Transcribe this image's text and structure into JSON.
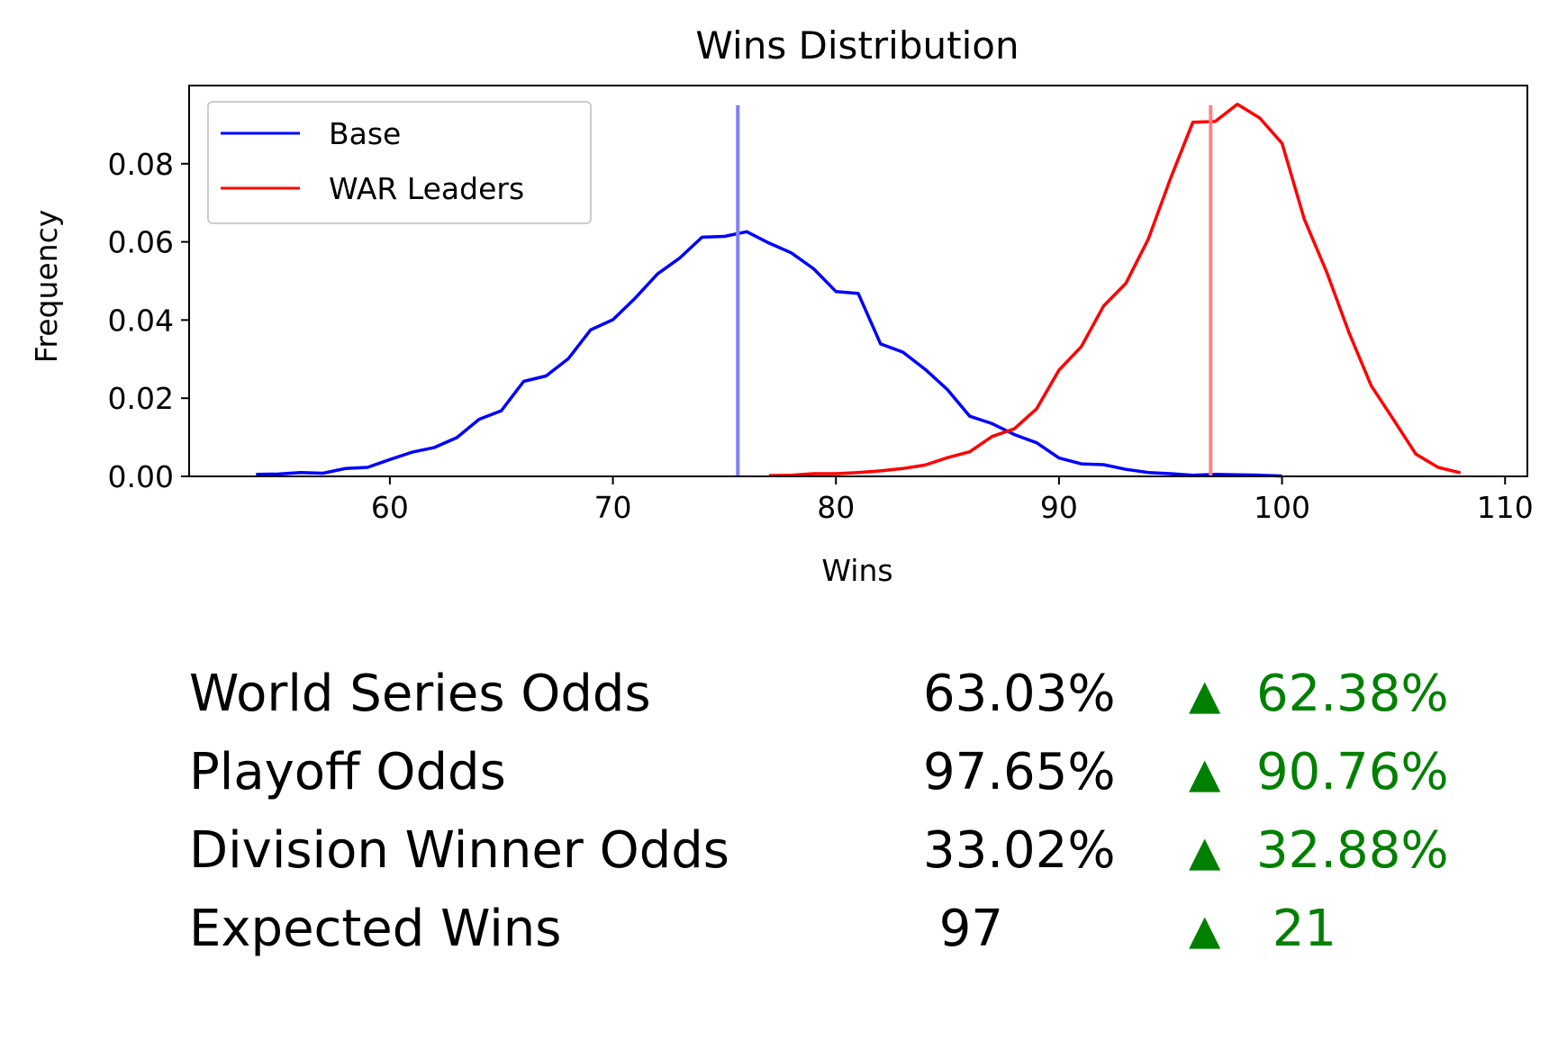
{
  "chart_data": {
    "type": "line",
    "title": "Wins Distribution",
    "xlabel": "Wins",
    "ylabel": "Frequency",
    "xlim": [
      51,
      111
    ],
    "ylim": [
      0,
      0.1
    ],
    "xticks": [
      60,
      70,
      80,
      90,
      100,
      110
    ],
    "yticks": [
      0.0,
      0.02,
      0.04,
      0.06,
      0.08
    ],
    "ytick_labels": [
      "0.00",
      "0.02",
      "0.04",
      "0.06",
      "0.08"
    ],
    "legend_position": "upper-left",
    "grid": false,
    "series": [
      {
        "name": "Base",
        "color": "#0000ff",
        "x": [
          54,
          55,
          56,
          57,
          58,
          59,
          60,
          61,
          62,
          63,
          64,
          65,
          66,
          67,
          68,
          69,
          70,
          71,
          72,
          73,
          74,
          75,
          76,
          77,
          78,
          79,
          80,
          81,
          82,
          83,
          84,
          85,
          86,
          87,
          88,
          89,
          90,
          91,
          92,
          93,
          94,
          95,
          96,
          97,
          98,
          99,
          100
        ],
        "values": [
          0.0005,
          0.0006,
          0.001,
          0.0008,
          0.002,
          0.0023,
          0.0043,
          0.0062,
          0.0074,
          0.0099,
          0.0146,
          0.0168,
          0.0243,
          0.0257,
          0.0301,
          0.0375,
          0.0401,
          0.0456,
          0.0518,
          0.0559,
          0.0612,
          0.0614,
          0.0626,
          0.0597,
          0.0572,
          0.0531,
          0.0473,
          0.0468,
          0.0339,
          0.0318,
          0.0274,
          0.0222,
          0.0154,
          0.0135,
          0.0107,
          0.0086,
          0.0047,
          0.0032,
          0.003,
          0.0018,
          0.001,
          0.0007,
          0.0003,
          0.0005,
          0.0004,
          0.0003,
          0.0001
        ]
      },
      {
        "name": "WAR Leaders",
        "color": "#ff0000",
        "x": [
          77,
          78,
          79,
          80,
          81,
          82,
          83,
          84,
          85,
          86,
          87,
          88,
          89,
          90,
          91,
          92,
          93,
          94,
          95,
          96,
          97,
          98,
          99,
          100,
          101,
          102,
          103,
          104,
          105,
          106,
          107,
          108
        ],
        "values": [
          0.0002,
          0.0003,
          0.0007,
          0.0007,
          0.001,
          0.0014,
          0.002,
          0.0029,
          0.0048,
          0.0063,
          0.0102,
          0.0122,
          0.0173,
          0.0272,
          0.0332,
          0.0436,
          0.0494,
          0.0607,
          0.0762,
          0.0906,
          0.0908,
          0.0952,
          0.0917,
          0.0852,
          0.0658,
          0.0523,
          0.0368,
          0.0232,
          0.0145,
          0.0057,
          0.0023,
          0.0009
        ]
      }
    ],
    "vlines": [
      {
        "x": 75.6,
        "color": "#8080ff"
      },
      {
        "x": 96.8,
        "color": "#ff8080"
      }
    ]
  },
  "stats": [
    {
      "label": "World Series Odds",
      "value": "63.03%",
      "arrow": "▲",
      "delta": "62.38%"
    },
    {
      "label": "Playoff Odds",
      "value": "97.65%",
      "arrow": "▲",
      "delta": "90.76%"
    },
    {
      "label": "Division Winner Odds",
      "value": "33.02%",
      "arrow": "▲",
      "delta": "32.88%"
    },
    {
      "label": "Expected Wins",
      "value": " 97",
      "arrow": "▲",
      "delta": " 21"
    }
  ]
}
